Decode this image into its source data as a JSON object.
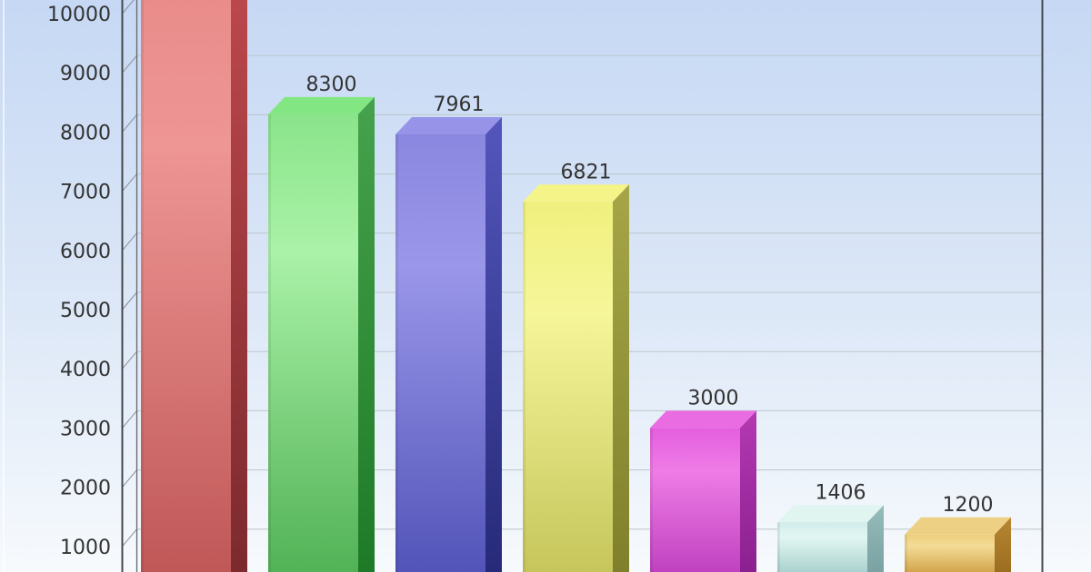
{
  "chart_data": {
    "type": "bar",
    "style": "3d-glossy-columns",
    "title": "",
    "xlabel": "",
    "ylabel": "",
    "legend": false,
    "grid": true,
    "background": {
      "top": "#c6d8f4",
      "mid": "#dde8f7",
      "bottom": "#f7fafd"
    },
    "frame": {
      "axis_color": "#45484d",
      "inner_wall_color": "#63666b",
      "grid_color": "#bfc7cf",
      "text_color": "#333333",
      "edge_highlight": "#ffffff"
    },
    "y_axis": {
      "ticks": [
        1000,
        2000,
        3000,
        4000,
        5000,
        6000,
        7000,
        8000,
        9000,
        10000
      ],
      "tick_labels": [
        "1000",
        "2000",
        "3000",
        "4000",
        "5000",
        "6000",
        "7000",
        "8000",
        "9000",
        "10000"
      ],
      "max_visible": 10000
    },
    "values": [
      null,
      8300,
      7961,
      6821,
      3000,
      1406,
      1200
    ],
    "bars": [
      {
        "name": "red",
        "value": null,
        "label": "",
        "note": "bar clipped above chart top; value label not visible",
        "top": "#f2a09c",
        "front": [
          "#e88a88",
          "#ee9694",
          "#c05858"
        ],
        "side": [
          "#c04a4e",
          "#7c2a2e"
        ]
      },
      {
        "name": "green",
        "value": 8300,
        "label": "8300",
        "top": "#82e682",
        "front": [
          "#8ae48a",
          "#aaf2a8",
          "#52b256"
        ],
        "side": [
          "#46a24c",
          "#1e7a26"
        ]
      },
      {
        "name": "blue",
        "value": 7961,
        "label": "7961",
        "top": "#9793e8",
        "front": [
          "#8a87e0",
          "#9a97ea",
          "#5254b8"
        ],
        "side": [
          "#5456bc",
          "#262a78"
        ]
      },
      {
        "name": "yellow",
        "value": 6821,
        "label": "6821",
        "top": "#f4f488",
        "front": [
          "#f0f07e",
          "#f6f69a",
          "#c6c65c"
        ],
        "side": [
          "#a6a648",
          "#80802c"
        ]
      },
      {
        "name": "magenta",
        "value": 3000,
        "label": "3000",
        "top": "#ea6ce2",
        "front": [
          "#e45ede",
          "#ee7ce6",
          "#c042c0"
        ],
        "side": [
          "#b439b2",
          "#8c2090"
        ]
      },
      {
        "name": "cyan",
        "value": 1406,
        "label": "1406",
        "top": "#e0f4f0",
        "front": [
          "#d2ecea",
          "#e2f6f2",
          "#abd2cf"
        ],
        "side": [
          "#96bcba",
          "#7aa2a2"
        ]
      },
      {
        "name": "gold",
        "value": 1200,
        "label": "1200",
        "top": "#eed084",
        "front": [
          "#eccf7c",
          "#f4dc96",
          "#d2a64c"
        ],
        "side": [
          "#b58632",
          "#9c6e20"
        ]
      }
    ],
    "notes": "Image is cropped: leftmost red bar exceeds the 10000 axis top and runs off-screen; all bars run past the bottom edge; x-axis category labels are not visible."
  }
}
